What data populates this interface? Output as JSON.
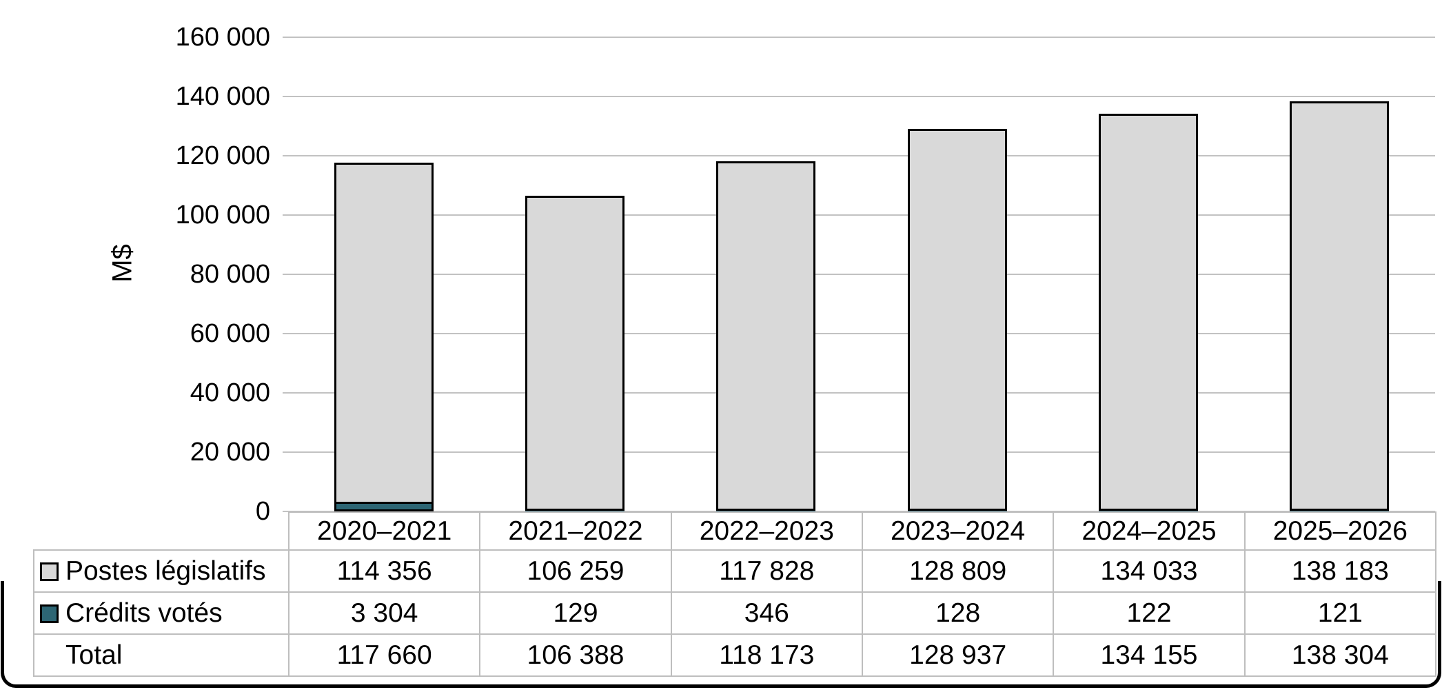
{
  "figure": {
    "y_axis_title": "M$",
    "y_tick_labels": [
      "160 000",
      "140 000",
      "120 000",
      "100 000",
      "80 000",
      "60 000",
      "40 000",
      "20 000",
      "0"
    ]
  },
  "colors": {
    "bar_fill_postes": "#D9D9D9",
    "bar_fill_credits": "#2D6674",
    "bar_outline": "#000000",
    "gridline": "#C2C2C2",
    "table_border": "#BEBEBE",
    "frame": "#000000"
  },
  "chart_data": {
    "type": "bar",
    "stacked": true,
    "title": "",
    "xlabel": "",
    "ylabel": "M$",
    "ylim": [
      0,
      160000
    ],
    "ytick_step": 20000,
    "grid": "horizontal",
    "legend_position": "table-left-column",
    "categories": [
      "2020–2021",
      "2021–2022",
      "2022–2023",
      "2023–2024",
      "2024–2025",
      "2025–2026"
    ],
    "series": [
      {
        "name": "Postes législatifs",
        "color": "#D9D9D9",
        "stack_position": "top",
        "values": [
          114356,
          106259,
          117828,
          128809,
          134033,
          138183
        ],
        "labels": [
          "114 356",
          "106 259",
          "117 828",
          "128 809",
          "134 033",
          "138 183"
        ]
      },
      {
        "name": "Crédits votés",
        "color": "#2D6674",
        "stack_position": "bottom",
        "values": [
          3304,
          129,
          346,
          128,
          122,
          121
        ],
        "labels": [
          "3 304",
          "129",
          "346",
          "128",
          "122",
          "121"
        ]
      }
    ],
    "totals": {
      "name": "Total",
      "values": [
        117660,
        106388,
        118173,
        128937,
        134155,
        138304
      ],
      "labels": [
        "117 660",
        "106 388",
        "118 173",
        "128 937",
        "134 155",
        "138 304"
      ]
    }
  }
}
